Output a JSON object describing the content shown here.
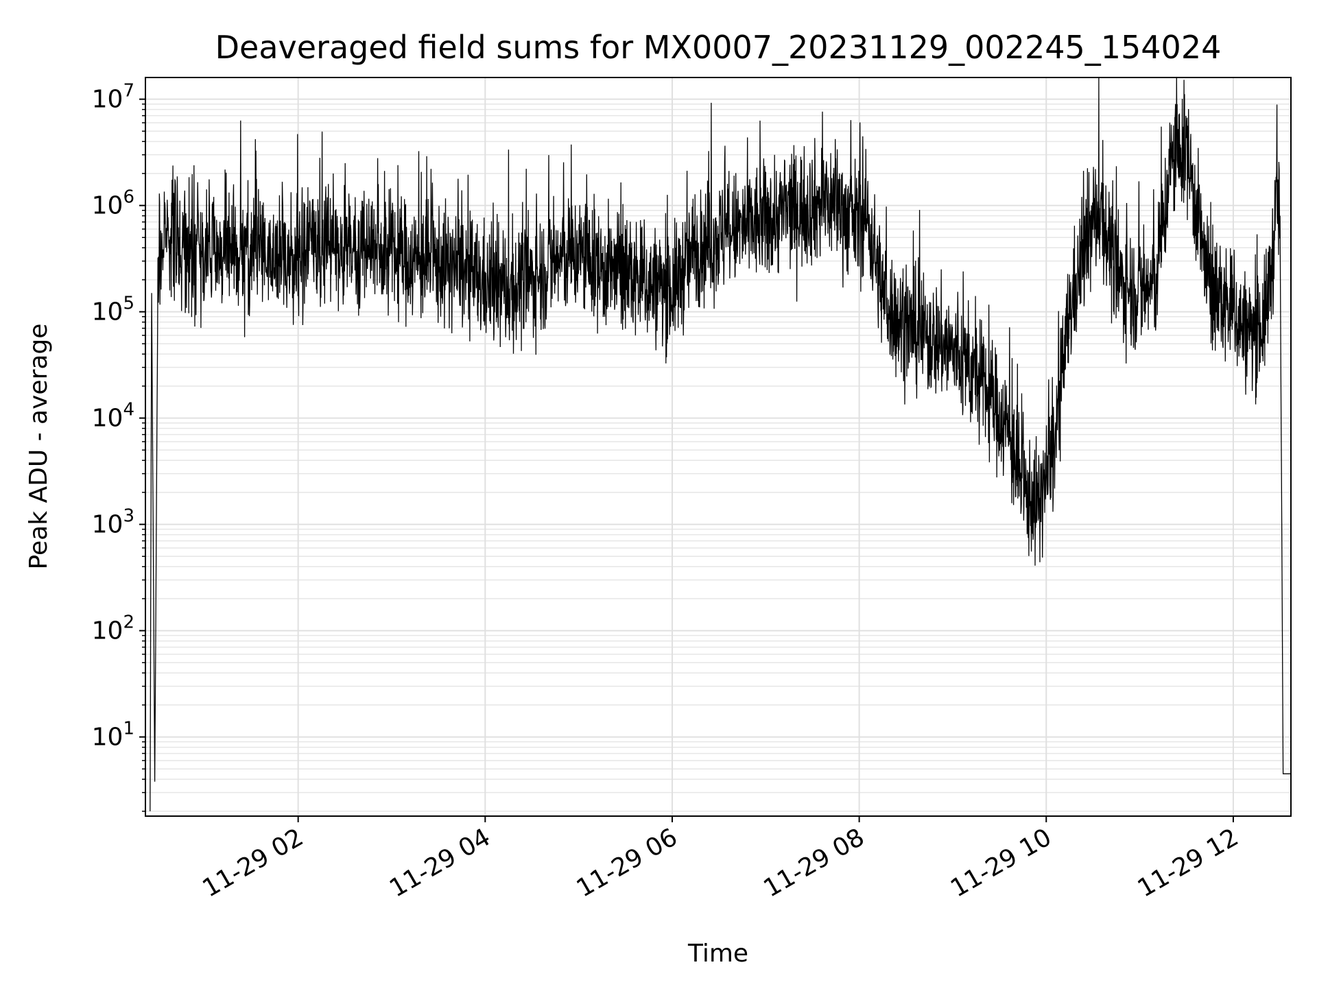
{
  "chart_data": {
    "type": "line",
    "title": "Deaveraged field sums for MX0007_20231129_002245_154024",
    "xlabel": "Time",
    "ylabel": "Peak ADU - average",
    "yscale": "log",
    "xlim": [
      "2023-11-29 00:22",
      "2023-11-29 12:37"
    ],
    "ylim": [
      1.8,
      16000000
    ],
    "grid": true,
    "line_color": "#000000",
    "x_ticks": [
      {
        "t": "2023-11-29 02:00",
        "label": "11-29 02"
      },
      {
        "t": "2023-11-29 04:00",
        "label": "11-29 04"
      },
      {
        "t": "2023-11-29 06:00",
        "label": "11-29 06"
      },
      {
        "t": "2023-11-29 08:00",
        "label": "11-29 08"
      },
      {
        "t": "2023-11-29 10:00",
        "label": "11-29 10"
      },
      {
        "t": "2023-11-29 12:00",
        "label": "11-29 12"
      }
    ],
    "y_ticks": [
      {
        "value": 10,
        "base": "10",
        "exp": "1"
      },
      {
        "value": 100,
        "base": "10",
        "exp": "2"
      },
      {
        "value": 1000,
        "base": "10",
        "exp": "3"
      },
      {
        "value": 10000,
        "base": "10",
        "exp": "4"
      },
      {
        "value": 100000,
        "base": "10",
        "exp": "5"
      },
      {
        "value": 1000000,
        "base": "10",
        "exp": "6"
      },
      {
        "value": 10000000,
        "base": "10",
        "exp": "7"
      }
    ],
    "series": [
      {
        "x": [
          "2023-11-29 00:25",
          "2023-11-29 00:26",
          "2023-11-29 00:28",
          "2023-11-29 00:30",
          "2023-11-29 00:33",
          "2023-11-29 00:36",
          "2023-11-29 00:40",
          "2023-11-29 00:45",
          "2023-11-29 00:50",
          "2023-11-29 00:55",
          "2023-11-29 01:00",
          "2023-11-29 01:10",
          "2023-11-29 01:20",
          "2023-11-29 01:30",
          "2023-11-29 01:40",
          "2023-11-29 01:50",
          "2023-11-29 02:00",
          "2023-11-29 02:07",
          "2023-11-29 02:15",
          "2023-11-29 02:30",
          "2023-11-29 02:45",
          "2023-11-29 03:00",
          "2023-11-29 03:15",
          "2023-11-29 03:30",
          "2023-11-29 03:45",
          "2023-11-29 04:00",
          "2023-11-29 04:15",
          "2023-11-29 04:30",
          "2023-11-29 04:45",
          "2023-11-29 05:00",
          "2023-11-29 05:15",
          "2023-11-29 05:30",
          "2023-11-29 05:45",
          "2023-11-29 06:00",
          "2023-11-29 06:15",
          "2023-11-29 06:30",
          "2023-11-29 06:45",
          "2023-11-29 07:00",
          "2023-11-29 07:15",
          "2023-11-29 07:30",
          "2023-11-29 07:45",
          "2023-11-29 07:55",
          "2023-11-29 08:05",
          "2023-11-29 08:15",
          "2023-11-29 08:25",
          "2023-11-29 08:40",
          "2023-11-29 08:55",
          "2023-11-29 09:10",
          "2023-11-29 09:25",
          "2023-11-29 09:35",
          "2023-11-29 09:45",
          "2023-11-29 09:55",
          "2023-11-29 10:05",
          "2023-11-29 10:15",
          "2023-11-29 10:25",
          "2023-11-29 10:35",
          "2023-11-29 10:45",
          "2023-11-29 11:00",
          "2023-11-29 11:10",
          "2023-11-29 11:20",
          "2023-11-29 11:30",
          "2023-11-29 11:45",
          "2023-11-29 12:00",
          "2023-11-29 12:10",
          "2023-11-29 12:20",
          "2023-11-29 12:25",
          "2023-11-29 12:28",
          "2023-11-29 12:30",
          "2023-11-29 12:32",
          "2023-11-29 12:37"
        ],
        "values": [
          2,
          150000,
          3.8,
          200000,
          450000,
          700000,
          500000,
          420000,
          380000,
          400000,
          350000,
          380000,
          300000,
          380000,
          350000,
          320000,
          280000,
          420000,
          380000,
          450000,
          400000,
          350000,
          300000,
          280000,
          250000,
          180000,
          160000,
          200000,
          300000,
          350000,
          250000,
          220000,
          180000,
          160000,
          400000,
          500000,
          600000,
          700000,
          900000,
          1000000,
          1100000,
          700000,
          800000,
          150000,
          80000,
          60000,
          50000,
          30000,
          15000,
          8000,
          2000,
          1500,
          5000,
          100000,
          400000,
          1000000,
          200000,
          150000,
          180000,
          2500000,
          3500000,
          150000,
          100000,
          60000,
          80000,
          300000,
          1200000,
          800000,
          4.5,
          4.5
        ],
        "noise": 0.28,
        "spike_prob": 0.04
      }
    ]
  }
}
